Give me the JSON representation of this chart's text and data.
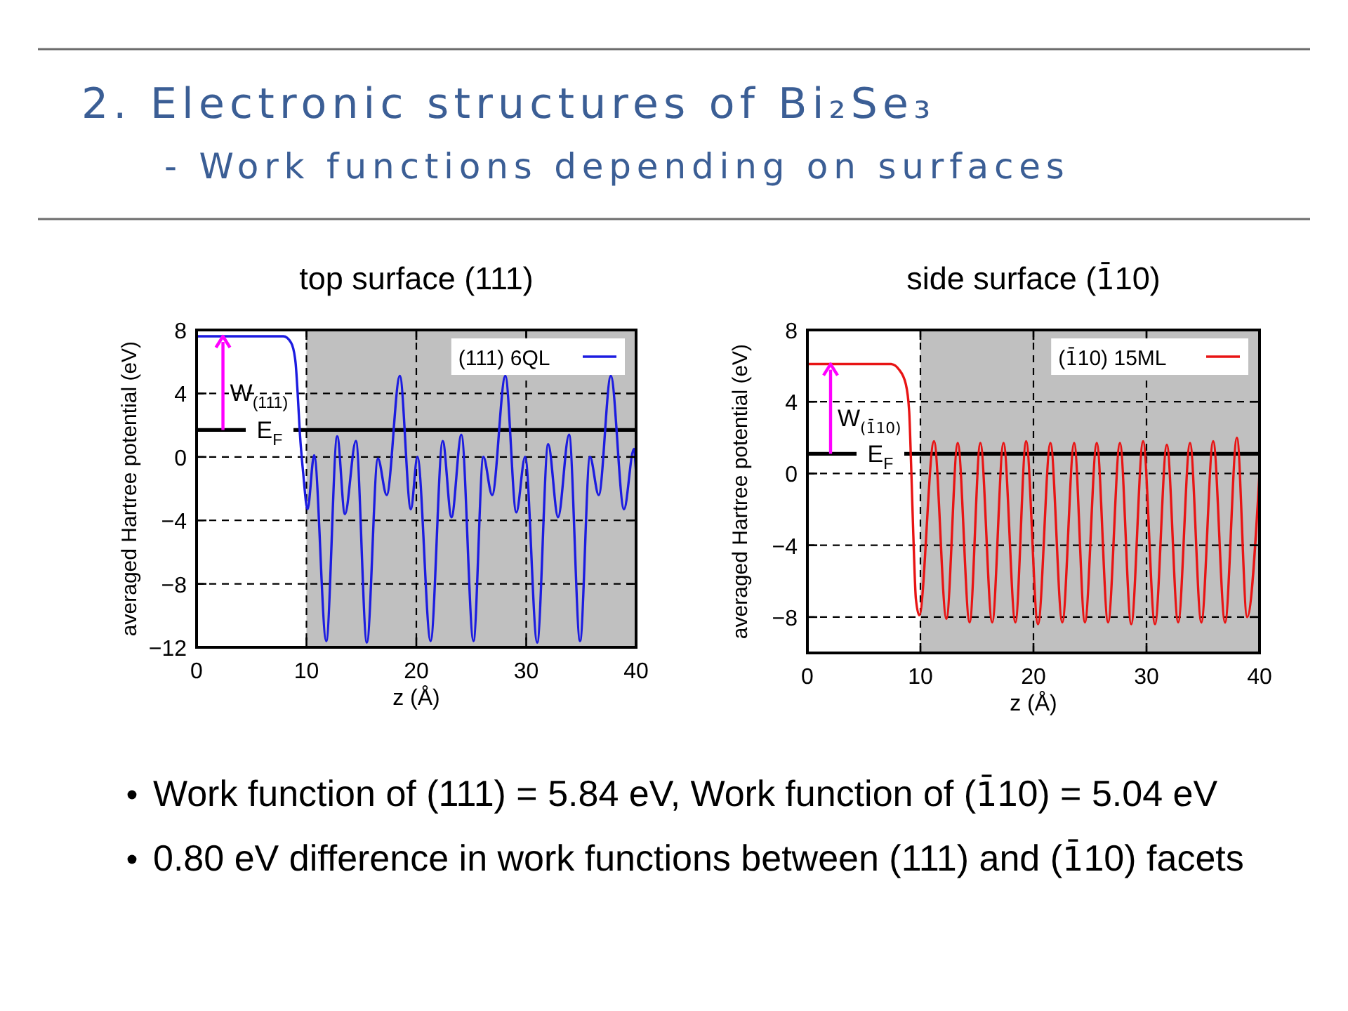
{
  "chart_data": [
    {
      "type": "other",
      "title": "2. Electronic structures of Bi₂Se₃",
      "subtitle": "- Work functions depending on surfaces"
    },
    {
      "type": "line",
      "title": "top surface (111)",
      "xlabel": "z (Å)",
      "ylabel": "averaged Hartree potential (eV)",
      "xlim": [
        0,
        40
      ],
      "xticks": [
        0,
        10,
        20,
        30,
        40
      ],
      "ylim": [
        -12,
        8
      ],
      "yticks": [
        -12,
        -8,
        -4,
        0,
        4,
        8
      ],
      "grid": true,
      "legend": "top right",
      "x": [
        0,
        7.9,
        8.6,
        9.0,
        9.2,
        9.4,
        9.7,
        10.1,
        10.7,
        11.8,
        12.8,
        13.5,
        14.5,
        15.5,
        16.5,
        17.3,
        18.5,
        19.5,
        20.1,
        21.3,
        22.4,
        23.2,
        24.1,
        25.2,
        26.1,
        26.9,
        28.1,
        29.1,
        29.9,
        31.0,
        32.0,
        32.9,
        33.9,
        34.9,
        35.8,
        36.6,
        37.7,
        38.9,
        39.8,
        40
      ],
      "series": [
        {
          "name": "(111) 6QL",
          "color": "#1c1ce0",
          "values": [
            7.6,
            7.6,
            7.2,
            6.0,
            4.0,
            1.5,
            -1.0,
            -3.3,
            0.1,
            -11.6,
            1.3,
            -3.6,
            1.0,
            -11.7,
            -0.1,
            -2.4,
            5.1,
            -3.3,
            0,
            -11.6,
            1.0,
            -3.8,
            1.4,
            -11.6,
            0,
            -2.4,
            5.1,
            -3.5,
            0,
            -11.7,
            0.8,
            -3.8,
            1.4,
            -11.6,
            0,
            -2.4,
            5.1,
            -3.3,
            0.5,
            -1.0
          ]
        }
      ],
      "ref_lines": [
        {
          "axis": "y",
          "value": 1.7,
          "label": "E$_{F}$",
          "color": "#000000"
        }
      ],
      "bands": [
        {
          "axis": "x",
          "from": 10,
          "to": 40,
          "color": "#c0c0c0"
        }
      ],
      "annotations": [
        {
          "text": "W$_{(111)}$",
          "x": 2.4,
          "y": 7.6
        }
      ]
    },
    {
      "type": "line",
      "title": "side surface (1̄10)",
      "xlabel": "z (Å)",
      "ylabel": "averaged Hartree potential (eV)",
      "xlim": [
        0,
        40
      ],
      "xticks": [
        0,
        10,
        20,
        30,
        40
      ],
      "ylim": [
        -10,
        8
      ],
      "yticks": [
        -8,
        -4,
        0,
        4,
        8
      ],
      "grid": true,
      "legend": "top right",
      "x": [
        0,
        7.4,
        8.1,
        8.7,
        9.0,
        9.2,
        9.4,
        9.6,
        9.9,
        11.2,
        12.3,
        13.3,
        14.35,
        15.3,
        16.35,
        17.35,
        18.4,
        19.35,
        20.4,
        21.5,
        22.55,
        23.6,
        24.55,
        25.6,
        26.6,
        27.65,
        28.65,
        29.7,
        30.75,
        31.8,
        32.8,
        33.85,
        34.85,
        35.9,
        36.95,
        38.0,
        38.9,
        40
      ],
      "series": [
        {
          "name": "(1̄10) 15ML",
          "color": "#e81414",
          "values": [
            6.1,
            6.1,
            5.8,
            5.0,
            3.5,
            0,
            -4,
            -7,
            -7.9,
            1.8,
            -8.1,
            1.7,
            -8.3,
            1.7,
            -8.3,
            1.7,
            -8.3,
            1.8,
            -8.4,
            1.7,
            -8.3,
            1.7,
            -8.3,
            1.7,
            -8.3,
            1.7,
            -8.4,
            1.8,
            -8.4,
            1.6,
            -8.3,
            1.7,
            -8.3,
            1.8,
            -8.3,
            2.0,
            -8.0,
            0
          ]
        }
      ],
      "ref_lines": [
        {
          "axis": "y",
          "value": 1.1,
          "label": "E$_{F}$",
          "color": "#000000"
        }
      ],
      "bands": [
        {
          "axis": "x",
          "from": 10,
          "to": 40,
          "color": "#c0c0c0"
        }
      ],
      "annotations": [
        {
          "text": "W$_{(1̄10)}$",
          "x": 2.05,
          "y": 6.1
        }
      ]
    },
    {
      "type": "other",
      "annotations": [
        "Work function of (111) = 5.84 eV, Work function of (1̄10) = 5.04 eV",
        "0.80 eV difference in work functions between (111) and (1̄10) facets"
      ]
    }
  ]
}
